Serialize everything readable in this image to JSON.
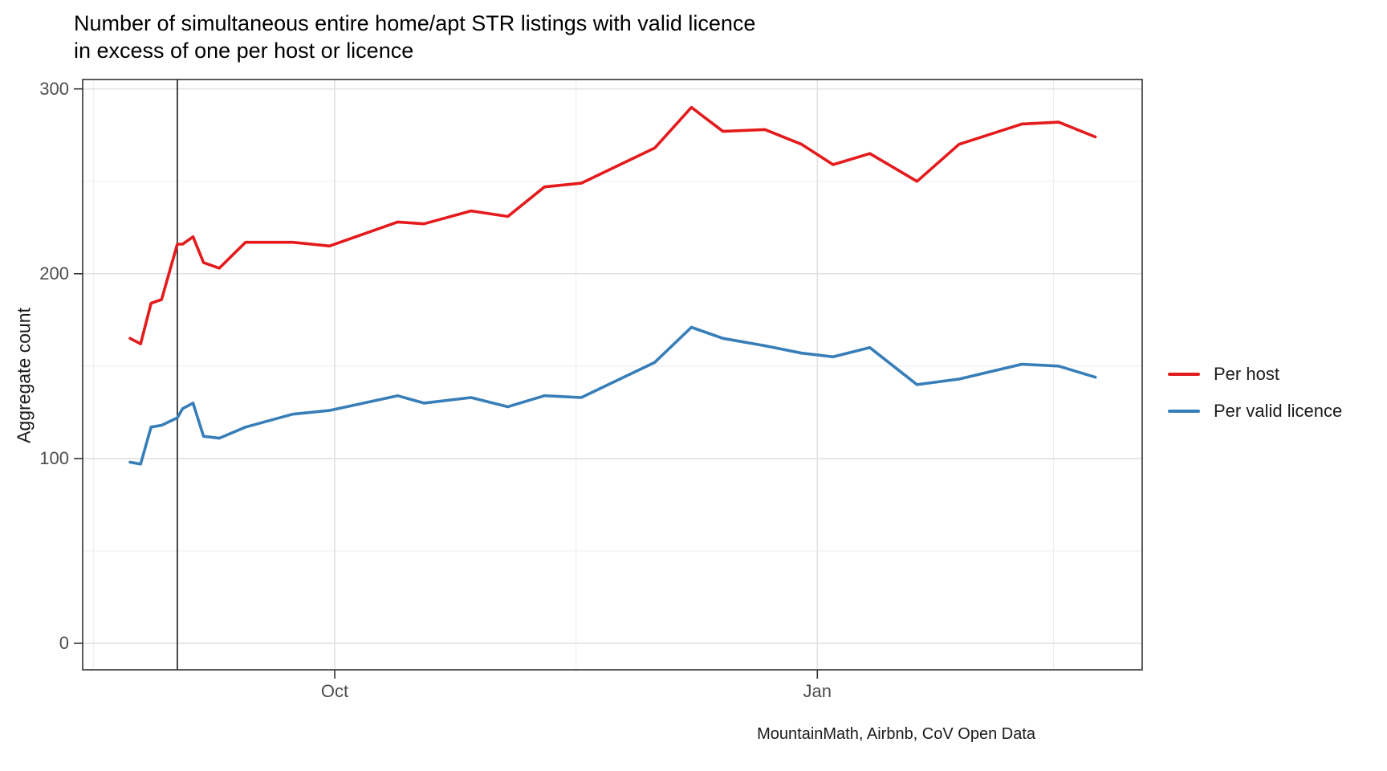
{
  "title": {
    "line1": "Number of simultaneous entire home/apt STR listings with valid licence",
    "line2": "in excess of one per host or licence"
  },
  "y_axis": {
    "title": "Aggregate count",
    "tick_labels": [
      "0",
      "100",
      "200",
      "300"
    ]
  },
  "x_axis": {
    "tick_labels": [
      "Oct",
      "Jan"
    ]
  },
  "legend": {
    "items": [
      {
        "label": "Per host",
        "color": "#E41A1C"
      },
      {
        "label": "Per valid licence",
        "color": "#377EB8"
      }
    ]
  },
  "caption": "MountainMath, Airbnb, CoV Open Data",
  "colors": {
    "per_host": "#E41A1C",
    "per_valid_licence": "#377EB8",
    "annotation_line": "#1a1a1a",
    "grid_major": "#e3e3e3",
    "grid_minor": "#eeeeee",
    "panel_border": "#333333"
  },
  "chart_data": {
    "type": "line",
    "title": "Number of simultaneous entire home/apt STR listings with valid licence in excess of one per host or licence",
    "xlabel": "",
    "ylabel": "Aggregate count",
    "ylim": [
      0,
      300
    ],
    "grid": true,
    "legend_position": "right",
    "x": [
      "2018-08-23",
      "2018-08-25",
      "2018-08-27",
      "2018-08-29",
      "2018-09-01",
      "2018-09-02",
      "2018-09-04",
      "2018-09-06",
      "2018-09-09",
      "2018-09-14",
      "2018-09-23",
      "2018-09-30",
      "2018-10-13",
      "2018-10-18",
      "2018-10-27",
      "2018-11-03",
      "2018-11-10",
      "2018-11-17",
      "2018-12-01",
      "2018-12-08",
      "2018-12-14",
      "2018-12-22",
      "2018-12-29",
      "2019-01-04",
      "2019-01-11",
      "2019-01-20",
      "2019-01-28",
      "2019-02-09",
      "2019-02-16",
      "2019-02-23"
    ],
    "series": [
      {
        "name": "Per host",
        "color": "#E41A1C",
        "values": [
          165,
          162,
          184,
          186,
          216,
          216,
          220,
          206,
          203,
          217,
          217,
          215,
          228,
          227,
          234,
          231,
          247,
          249,
          268,
          290,
          277,
          278,
          270,
          259,
          265,
          250,
          270,
          281,
          282,
          274
        ]
      },
      {
        "name": "Per valid licence",
        "color": "#377EB8",
        "values": [
          98,
          97,
          117,
          118,
          122,
          127,
          130,
          112,
          111,
          117,
          124,
          126,
          134,
          130,
          133,
          128,
          134,
          133,
          152,
          171,
          165,
          161,
          157,
          155,
          160,
          140,
          143,
          151,
          150,
          144
        ]
      }
    ],
    "y_ticks": [
      0,
      100,
      200,
      300
    ],
    "y_minor_ticks": [
      50,
      150,
      250
    ],
    "x_ticks": [
      {
        "label": "Oct",
        "date": "2018-10-01"
      },
      {
        "label": "Jan",
        "date": "2019-01-01"
      }
    ],
    "x_minor_dates": [
      "2018-08-16",
      "2018-11-16",
      "2019-02-15"
    ],
    "annotations": [
      {
        "type": "vline",
        "date": "2018-09-01",
        "color": "black"
      }
    ]
  }
}
